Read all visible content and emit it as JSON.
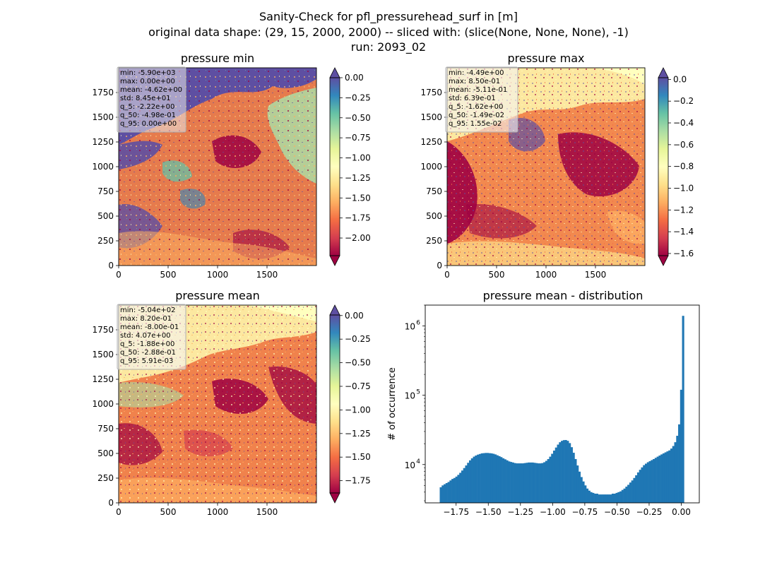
{
  "figure": {
    "title_lines": [
      "Sanity-Check for pfl_pressurehead_surf in [m]",
      "original data shape: (29, 15, 2000, 2000) -- sliced with: (slice(None, None, None), -1)",
      "run: 2093_02"
    ]
  },
  "colormap": [
    "#9e0142",
    "#d53e4f",
    "#f46d43",
    "#fdae61",
    "#fee08b",
    "#ffffbf",
    "#e6f598",
    "#abdda4",
    "#66c2a5",
    "#3288bd",
    "#5e4fa2"
  ],
  "chart_data": [
    {
      "type": "heatmap",
      "title": "pressure min",
      "x_ticks": [
        0,
        500,
        1000,
        1500
      ],
      "y_ticks": [
        0,
        250,
        500,
        750,
        1000,
        1250,
        1500,
        1750
      ],
      "xlim": [
        0,
        2000
      ],
      "ylim": [
        0,
        2000
      ],
      "colorbar": {
        "vmin": -2.22,
        "vmax": 0.0,
        "ticks": [
          0.0,
          -0.25,
          -0.5,
          -0.75,
          -1.0,
          -1.25,
          -1.5,
          -1.75,
          -2.0
        ],
        "tick_labels": [
          "0.00",
          "−0.25",
          "−0.50",
          "−0.75",
          "−1.00",
          "−1.25",
          "−1.50",
          "−1.75",
          "−2.00"
        ],
        "extend": "both",
        "colormap": "Spectral"
      },
      "stats": [
        "min: -5.90e+03",
        "max: 0.00e+00",
        "mean: -4.62e+00",
        "std: 8.45e+01",
        "q_5: -2.22e+00",
        "q_50: -4.98e-01",
        "q_95: 0.00e+00"
      ]
    },
    {
      "type": "heatmap",
      "title": "pressure max",
      "x_ticks": [
        0,
        500,
        1000,
        1500
      ],
      "y_ticks": [
        0,
        250,
        500,
        750,
        1000,
        1250,
        1500,
        1750
      ],
      "xlim": [
        0,
        2000
      ],
      "ylim": [
        0,
        2000
      ],
      "colorbar": {
        "vmin": -1.62,
        "vmax": 0.0155,
        "ticks": [
          0.0,
          -0.2,
          -0.4,
          -0.6,
          -0.8,
          -1.0,
          -1.2,
          -1.4,
          -1.6
        ],
        "tick_labels": [
          "0.0",
          "−0.2",
          "−0.4",
          "−0.6",
          "−0.8",
          "−1.0",
          "−1.2",
          "−1.4",
          "−1.6"
        ],
        "extend": "both",
        "colormap": "Spectral"
      },
      "stats": [
        "min: -4.49e+00",
        "max: 8.50e-01",
        "mean: -5.11e-01",
        "std: 6.39e-01",
        "q_5: -1.62e+00",
        "q_50: -1.49e-02",
        "q_95: 1.55e-02"
      ]
    },
    {
      "type": "heatmap",
      "title": "pressure mean",
      "x_ticks": [
        0,
        500,
        1000,
        1500
      ],
      "y_ticks": [
        0,
        250,
        500,
        750,
        1000,
        1250,
        1500,
        1750
      ],
      "xlim": [
        0,
        2000
      ],
      "ylim": [
        0,
        2000
      ],
      "colorbar": {
        "vmin": -1.88,
        "vmax": 0.00591,
        "ticks": [
          0.0,
          -0.25,
          -0.5,
          -0.75,
          -1.0,
          -1.25,
          -1.5,
          -1.75
        ],
        "tick_labels": [
          "0.00",
          "−0.25",
          "−0.50",
          "−0.75",
          "−1.00",
          "−1.25",
          "−1.50",
          "−1.75"
        ],
        "extend": "both",
        "colormap": "Spectral"
      },
      "stats": [
        "min: -5.04e+02",
        "max: 8.20e-01",
        "mean: -8.00e-01",
        "std: 4.07e+00",
        "q_5: -1.88e+00",
        "q_50: -2.88e-01",
        "q_95: 5.91e-03"
      ]
    },
    {
      "type": "bar",
      "title": "pressure mean - distribution",
      "ylabel": "# of occurrence",
      "y_scale": "log",
      "xlim": [
        -1.99,
        0.14
      ],
      "ylim": [
        2800,
        2000000
      ],
      "x_ticks": [
        -1.75,
        -1.5,
        -1.25,
        -1.0,
        -0.75,
        -0.5,
        -0.25,
        0.0
      ],
      "x_tick_labels": [
        "−1.75",
        "−1.50",
        "−1.25",
        "−1.00",
        "−0.75",
        "−0.50",
        "−0.25",
        "0.00"
      ],
      "y_ticks": [
        10000,
        100000,
        1000000
      ],
      "y_tick_labels": [
        "10^4",
        "10^5",
        "10^6"
      ],
      "bar_color": "#1f77b4",
      "bins": {
        "x": [
          -1.8774,
          -1.8623,
          -1.8471,
          -1.8319,
          -1.8167,
          -1.8015,
          -1.7863,
          -1.7711,
          -1.7559,
          -1.7408,
          -1.7256,
          -1.7104,
          -1.6952,
          -1.68,
          -1.6648,
          -1.6496,
          -1.6344,
          -1.6193,
          -1.6041,
          -1.5889,
          -1.5737,
          -1.5585,
          -1.5433,
          -1.5281,
          -1.5129,
          -1.4977,
          -1.4826,
          -1.4674,
          -1.4522,
          -1.437,
          -1.4218,
          -1.4066,
          -1.3914,
          -1.3762,
          -1.3611,
          -1.3459,
          -1.3307,
          -1.3155,
          -1.3003,
          -1.2851,
          -1.2699,
          -1.2547,
          -1.2395,
          -1.2244,
          -1.2092,
          -1.194,
          -1.1788,
          -1.1636,
          -1.1484,
          -1.1332,
          -1.118,
          -1.1029,
          -1.0877,
          -1.0725,
          -1.0573,
          -1.0421,
          -1.0269,
          -1.0117,
          -0.9965,
          -0.9814,
          -0.9662,
          -0.951,
          -0.9358,
          -0.9206,
          -0.9054,
          -0.8902,
          -0.875,
          -0.8598,
          -0.8447,
          -0.8295,
          -0.8143,
          -0.7991,
          -0.7839,
          -0.7687,
          -0.7535,
          -0.7383,
          -0.7232,
          -0.708,
          -0.6928,
          -0.6776,
          -0.6624,
          -0.6472,
          -0.632,
          -0.6168,
          -0.6017,
          -0.5865,
          -0.5713,
          -0.5561,
          -0.5409,
          -0.5257,
          -0.5105,
          -0.4953,
          -0.4801,
          -0.465,
          -0.4498,
          -0.4346,
          -0.4194,
          -0.4042,
          -0.389,
          -0.3738,
          -0.3586,
          -0.3435,
          -0.3283,
          -0.3131,
          -0.2979,
          -0.2827,
          -0.2675,
          -0.2523,
          -0.2371,
          -0.222,
          -0.2068,
          -0.1916,
          -0.1764,
          -0.1612,
          -0.146,
          -0.1308,
          -0.1156,
          -0.1004,
          -0.0853,
          -0.0701,
          -0.0549,
          -0.0397,
          -0.0245,
          -0.0093,
          0.0059
        ],
        "counts": [
          4700,
          5000,
          5200,
          5400,
          5600,
          5900,
          6200,
          6400,
          6700,
          7100,
          7600,
          8200,
          8900,
          9700,
          10600,
          11500,
          12300,
          13000,
          13500,
          13900,
          14200,
          14500,
          14600,
          14700,
          14700,
          14600,
          14500,
          14300,
          14000,
          13600,
          13200,
          12800,
          12300,
          11900,
          11500,
          11100,
          10900,
          10700,
          10500,
          10400,
          10400,
          10400,
          10400,
          10500,
          10600,
          10700,
          10700,
          10700,
          10600,
          10500,
          10400,
          10400,
          10500,
          10800,
          11300,
          12000,
          13000,
          14300,
          15900,
          17600,
          19400,
          21000,
          22000,
          22500,
          22600,
          22000,
          20400,
          17800,
          14800,
          12000,
          9700,
          7900,
          6600,
          5700,
          5000,
          4500,
          4200,
          4000,
          3900,
          3800,
          3800,
          3700,
          3700,
          3700,
          3700,
          3700,
          3700,
          3700,
          3800,
          3800,
          3900,
          4000,
          4100,
          4300,
          4500,
          4800,
          5100,
          5500,
          5900,
          6400,
          7000,
          7700,
          8400,
          9100,
          9800,
          10300,
          10800,
          11200,
          11600,
          12000,
          12500,
          13000,
          13500,
          14000,
          14500,
          15000,
          15500,
          16000,
          17000,
          18500,
          21000,
          26000,
          38000,
          120000,
          1400000
        ]
      }
    }
  ]
}
